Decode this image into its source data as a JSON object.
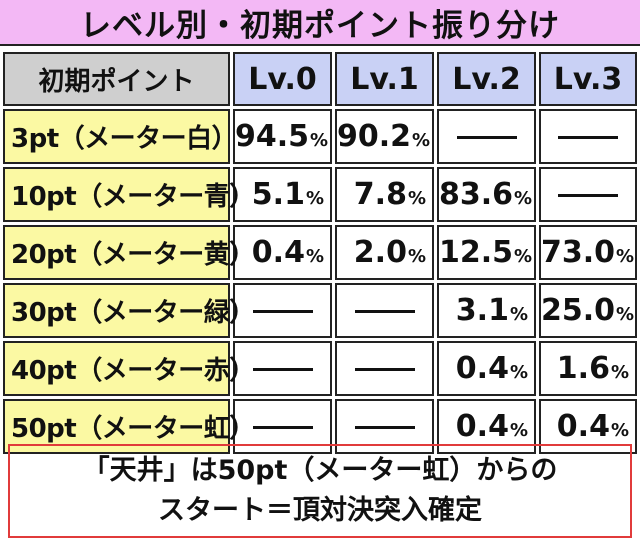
{
  "title": "レベル別・初期ポイント振り分け",
  "table": {
    "corner": "初期ポイント",
    "columns": [
      "Lv.0",
      "Lv.1",
      "Lv.2",
      "Lv.3"
    ],
    "rows": [
      {
        "label": "3pt（メーター白）",
        "values": [
          "94.5",
          "90.2",
          null,
          null
        ]
      },
      {
        "label": "10pt（メーター青）",
        "values": [
          "5.1",
          "7.8",
          "83.6",
          null
        ]
      },
      {
        "label": "20pt（メーター黄）",
        "values": [
          "0.4",
          "2.0",
          "12.5",
          "73.0"
        ]
      },
      {
        "label": "30pt（メーター緑）",
        "values": [
          null,
          null,
          "3.1",
          "25.0"
        ]
      },
      {
        "label": "40pt（メーター赤）",
        "values": [
          null,
          null,
          "0.4",
          "1.6"
        ]
      },
      {
        "label": "50pt（メーター虹）",
        "values": [
          null,
          null,
          "0.4",
          "0.4"
        ]
      }
    ],
    "unit": "%"
  },
  "note": {
    "line1": "「天井」は50pt（メーター虹）からの",
    "line2": "スタート＝頂対決突入確定"
  },
  "colors": {
    "title_bg": "#f3b8f5",
    "header_bg": "#c9d1f5",
    "corner_bg": "#cfcfcf",
    "row_label_bg": "#fbf9a3",
    "note_border": "#e13b3b"
  }
}
